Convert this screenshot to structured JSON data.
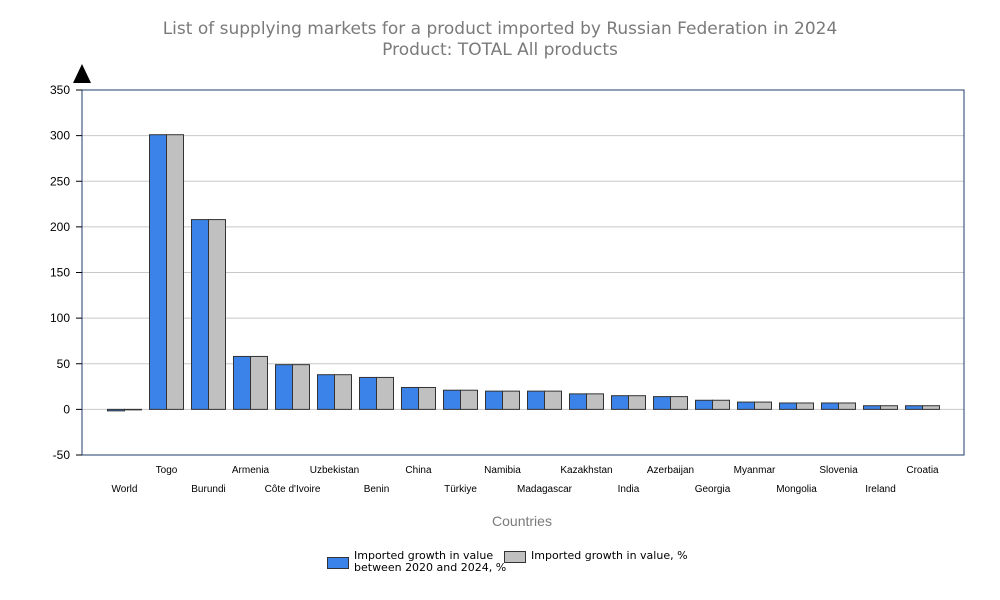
{
  "chart_data": {
    "type": "bar",
    "title": "List of supplying markets for a product imported by Russian Federation in 2024",
    "subtitle": "Product: TOTAL All products",
    "xlabel": "Countries",
    "ylabel": "",
    "ylim": [
      -50,
      350
    ],
    "yticks": [
      350,
      300,
      250,
      200,
      150,
      100,
      50,
      0,
      -50
    ],
    "grid": true,
    "legend_position": "bottom",
    "categories": [
      "World",
      "Togo",
      "Burundi",
      "Armenia",
      "Côte d'Ivoire",
      "Uzbekistan",
      "Benin",
      "China",
      "Türkiye",
      "Namibia",
      "Madagascar",
      "Kazakhstan",
      "India",
      "Azerbaijan",
      "Georgia",
      "Myanmar",
      "Mongolia",
      "Slovenia",
      "Ireland",
      "Croatia"
    ],
    "series": [
      {
        "name": "Imported growth in value between 2020 and 2024, %",
        "color": "#3b83e8",
        "values": [
          -1,
          301,
          208,
          58,
          49,
          38,
          35,
          24,
          21,
          20,
          20,
          17,
          15,
          14,
          10,
          8,
          7,
          7,
          4,
          4
        ]
      },
      {
        "name": "Imported growth in value, %",
        "color": "#c0c0c0",
        "values": [
          0,
          301,
          208,
          58,
          49,
          38,
          35,
          24,
          21,
          20,
          20,
          17,
          15,
          14,
          10,
          8,
          7,
          7,
          4,
          4
        ]
      }
    ]
  },
  "legend": {
    "item1_line1": "Imported growth in value",
    "item1_line2": "between 2020 and 2024,  %",
    "item2": "Imported growth in value, %"
  }
}
